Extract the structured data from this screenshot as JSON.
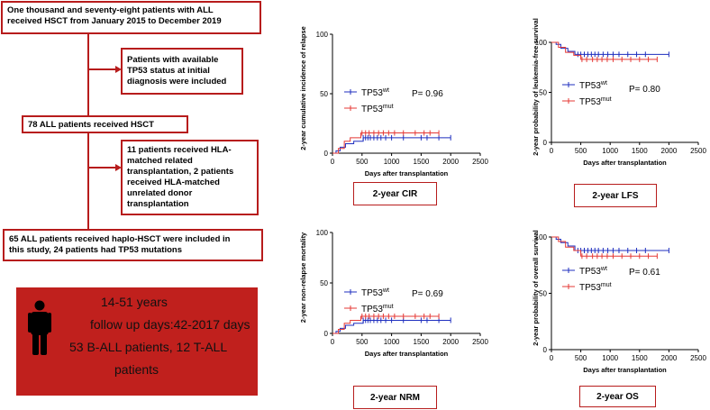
{
  "flowchart": {
    "box1": [
      "One thousand and seventy-eight patients with ALL",
      "received HSCT from January 2015 to December 2019"
    ],
    "box2": [
      "Patients with available",
      "TP53 status at initial",
      "diagnosis were included"
    ],
    "box3": [
      "78 ALL patients received HSCT"
    ],
    "box4": [
      "11 patients received HLA-",
      "matched related",
      "transplantation, 2 patients",
      "received HLA-matched",
      "unrelated donor",
      "transplantation"
    ],
    "box5": [
      "65 ALL patients received haplo-HSCT were included in",
      "this study, 24 patients had TP53 mutations"
    ]
  },
  "summary": {
    "age": "14-51 years",
    "followup": "follow up days:42-2017 days",
    "types_line1": "53 B-ALL patients, 12 T-ALL",
    "types_line2": "patients"
  },
  "colors": {
    "accent": "#b71c1c",
    "summary_bg": "#c0201d",
    "wt": "#1f2fbf",
    "mut": "#e53935"
  },
  "icons": {
    "summary": "person-icon"
  },
  "chart_data": [
    {
      "type": "line",
      "ylabel": "2-year cumulative incidence of relapse",
      "xlabel": "Days after transplantation",
      "caption": "2-year CIR",
      "p_value": "P= 0.96",
      "xlim": [
        0,
        2500
      ],
      "ylim": [
        0,
        100
      ],
      "xticks": [
        "0",
        "500",
        "1000",
        "1500",
        "2000",
        "2500"
      ],
      "yticks": [
        "0",
        "50",
        "100"
      ],
      "legend": [
        {
          "name": "TP53",
          "sup": "wt"
        },
        {
          "name": "TP53",
          "sup": "mut"
        }
      ],
      "series": [
        {
          "key": "wt",
          "steps": [
            [
              0,
              0
            ],
            [
              60,
              2
            ],
            [
              130,
              5
            ],
            [
              220,
              8
            ],
            [
              360,
              10
            ],
            [
              520,
              13
            ],
            [
              2000,
              13
            ]
          ],
          "censors": [
            520,
            560,
            600,
            640,
            700,
            760,
            820,
            900,
            1000,
            1200,
            1500,
            1600,
            1800,
            2000
          ]
        },
        {
          "key": "mut",
          "steps": [
            [
              0,
              0
            ],
            [
              100,
              4
            ],
            [
              200,
              10
            ],
            [
              300,
              13
            ],
            [
              480,
              17
            ],
            [
              1800,
              17
            ]
          ],
          "censors": [
            500,
            560,
            620,
            700,
            780,
            860,
            950,
            1050,
            1200,
            1400,
            1550,
            1650,
            1800
          ]
        }
      ]
    },
    {
      "type": "line",
      "ylabel": "2-year probability of leukemia-free survival",
      "xlabel": "Days after transplantation",
      "caption": "2-year LFS",
      "p_value": "P= 0.80",
      "xlim": [
        0,
        2500
      ],
      "ylim": [
        0,
        100
      ],
      "xticks": [
        "0",
        "500",
        "1000",
        "1500",
        "2000",
        "2500"
      ],
      "yticks": [
        "0",
        "50",
        "100"
      ],
      "legend": [
        {
          "name": "TP53",
          "sup": "wt"
        },
        {
          "name": "TP53",
          "sup": "mut"
        }
      ],
      "series": [
        {
          "key": "wt",
          "steps": [
            [
              0,
              100
            ],
            [
              80,
              98
            ],
            [
              160,
              94
            ],
            [
              280,
              91
            ],
            [
              400,
              88
            ],
            [
              2000,
              88
            ]
          ],
          "censors": [
            450,
            500,
            560,
            620,
            680,
            740,
            800,
            880,
            960,
            1050,
            1150,
            1300,
            1450,
            1600,
            2000
          ]
        },
        {
          "key": "mut",
          "steps": [
            [
              0,
              100
            ],
            [
              120,
              95
            ],
            [
              240,
              90
            ],
            [
              380,
              87
            ],
            [
              500,
              83
            ],
            [
              1800,
              83
            ]
          ],
          "censors": [
            520,
            600,
            700,
            780,
            860,
            950,
            1050,
            1200,
            1350,
            1500,
            1650,
            1800
          ]
        }
      ]
    },
    {
      "type": "line",
      "ylabel": "2-year non-relapse mortality",
      "xlabel": "Days after transplantation",
      "caption": "2-year NRM",
      "p_value": "P= 0.69",
      "xlim": [
        0,
        2500
      ],
      "ylim": [
        0,
        100
      ],
      "xticks": [
        "0",
        "500",
        "1000",
        "1500",
        "2000",
        "2500"
      ],
      "yticks": [
        "0",
        "50",
        "100"
      ],
      "legend": [
        {
          "name": "TP53",
          "sup": "wt"
        },
        {
          "name": "TP53",
          "sup": "mut"
        }
      ],
      "series": [
        {
          "key": "wt",
          "steps": [
            [
              0,
              0
            ],
            [
              60,
              2
            ],
            [
              130,
              5
            ],
            [
              220,
              8
            ],
            [
              360,
              10
            ],
            [
              520,
              13
            ],
            [
              2000,
              13
            ]
          ],
          "censors": [
            520,
            560,
            600,
            640,
            700,
            760,
            820,
            900,
            1000,
            1200,
            1500,
            1600,
            1800,
            2000
          ]
        },
        {
          "key": "mut",
          "steps": [
            [
              0,
              0
            ],
            [
              100,
              4
            ],
            [
              200,
              10
            ],
            [
              300,
              13
            ],
            [
              480,
              17
            ],
            [
              1800,
              17
            ]
          ],
          "censors": [
            500,
            560,
            620,
            700,
            780,
            860,
            950,
            1050,
            1200,
            1400,
            1550,
            1650,
            1800
          ]
        }
      ]
    },
    {
      "type": "line",
      "ylabel": "2-year probability of overall survival",
      "xlabel": "Days after transplantation",
      "caption": "2-year OS",
      "p_value": "P= 0.61",
      "xlim": [
        0,
        2500
      ],
      "ylim": [
        0,
        100
      ],
      "xticks": [
        "0",
        "500",
        "1000",
        "1500",
        "2000",
        "2500"
      ],
      "yticks": [
        "0",
        "50",
        "100"
      ],
      "legend": [
        {
          "name": "TP53",
          "sup": "wt"
        },
        {
          "name": "TP53",
          "sup": "mut"
        }
      ],
      "series": [
        {
          "key": "wt",
          "steps": [
            [
              0,
              100
            ],
            [
              80,
              98
            ],
            [
              160,
              95
            ],
            [
              280,
              92
            ],
            [
              400,
              88
            ],
            [
              2000,
              88
            ]
          ],
          "censors": [
            450,
            500,
            560,
            620,
            680,
            740,
            800,
            880,
            960,
            1050,
            1150,
            1300,
            1450,
            1600,
            2000
          ]
        },
        {
          "key": "mut",
          "steps": [
            [
              0,
              100
            ],
            [
              120,
              96
            ],
            [
              240,
              91
            ],
            [
              380,
              88
            ],
            [
              500,
              83
            ],
            [
              1800,
              83
            ]
          ],
          "censors": [
            520,
            600,
            700,
            780,
            860,
            950,
            1050,
            1200,
            1350,
            1500,
            1650,
            1800
          ]
        }
      ]
    }
  ]
}
